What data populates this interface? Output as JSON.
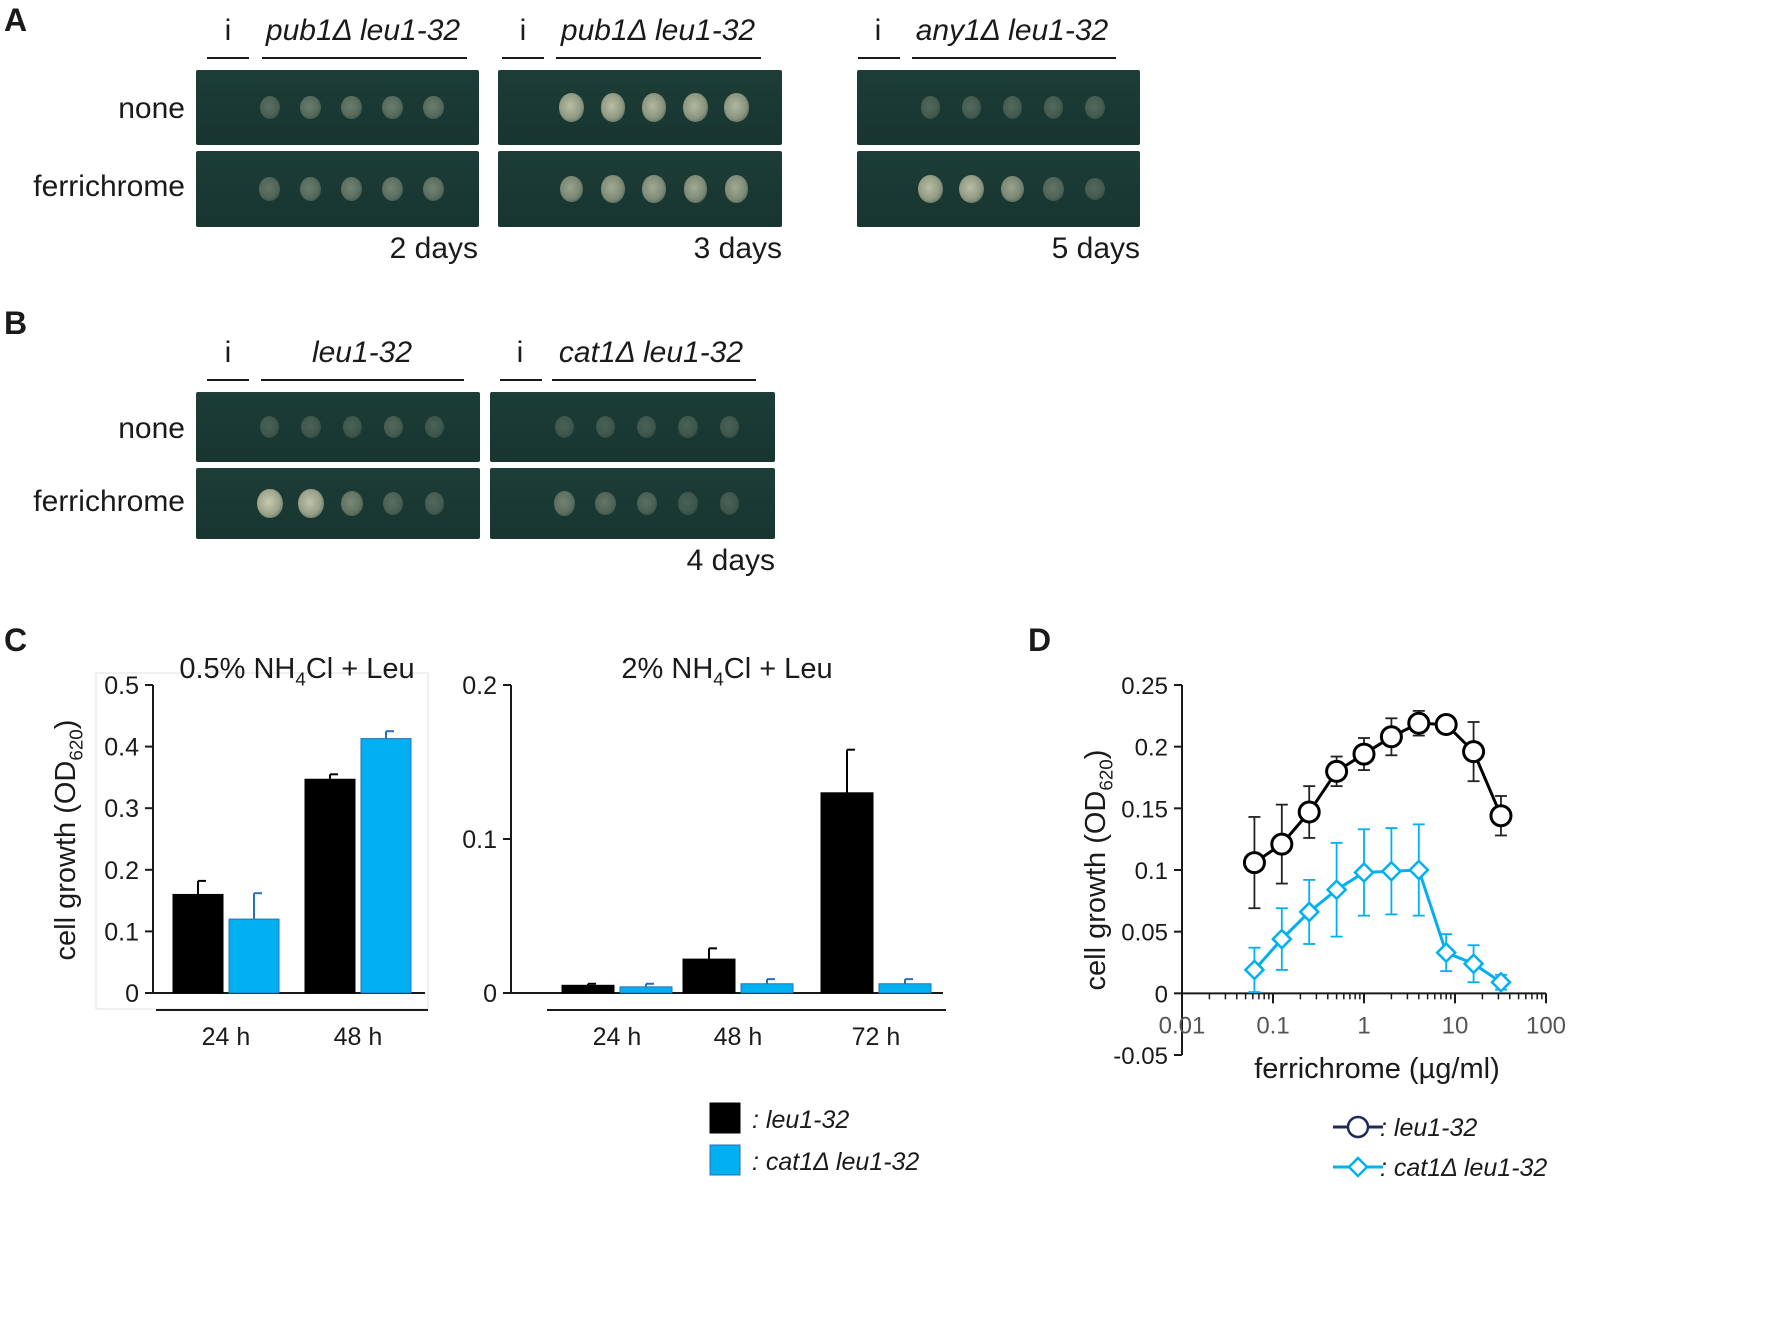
{
  "panels": {
    "A": {
      "letter": "A",
      "row_labels": [
        "none",
        "ferrichrome"
      ],
      "groups": [
        {
          "i_label": "i",
          "strain": "pub1Δ leu1-32",
          "days": "2 days",
          "none_spots": [
            0.25,
            0.35,
            0.35,
            0.35,
            0.35
          ],
          "ferri_spots": [
            0.3,
            0.35,
            0.4,
            0.4,
            0.4
          ]
        },
        {
          "i_label": "i",
          "strain": "pub1Δ leu1-32",
          "days": "3 days",
          "none_spots": [
            0.85,
            0.85,
            0.8,
            0.8,
            0.8
          ],
          "ferri_spots": [
            0.65,
            0.7,
            0.7,
            0.7,
            0.7
          ]
        },
        {
          "i_label": "i",
          "strain": "any1Δ leu1-32",
          "days": "5 days",
          "none_spots": [
            0.2,
            0.2,
            0.2,
            0.2,
            0.2
          ],
          "ferri_spots": [
            0.85,
            0.85,
            0.65,
            0.3,
            0.2
          ]
        }
      ]
    },
    "B": {
      "letter": "B",
      "row_labels": [
        "none",
        "ferrichrome"
      ],
      "groups": [
        {
          "i_label": "i",
          "strain": "leu1-32",
          "none_spots": [
            0.15,
            0.15,
            0.15,
            0.2,
            0.15
          ],
          "ferri_spots": [
            0.95,
            0.9,
            0.45,
            0.25,
            0.2
          ]
        },
        {
          "i_label": "i",
          "strain": "cat1Δ leu1-32",
          "none_spots": [
            0.15,
            0.15,
            0.15,
            0.15,
            0.15
          ],
          "ferri_spots": [
            0.4,
            0.3,
            0.25,
            0.15,
            0.15
          ]
        }
      ],
      "days": "4 days"
    },
    "C": {
      "letter": "C"
    },
    "D": {
      "letter": "D"
    }
  },
  "chart_data": [
    {
      "id": "C-left",
      "type": "bar",
      "title": "0.5% NH4Cl + Leu",
      "title_parts": {
        "pre": "0.5% NH",
        "sub": "4",
        "post": "Cl + Leu"
      },
      "ylabel": "cell growth (OD620)",
      "ylabel_parts": {
        "pre": "cell growth (OD",
        "sub": "620",
        "post": ")"
      },
      "ylim": [
        0,
        0.5
      ],
      "yticks": [
        0,
        0.1,
        0.2,
        0.3,
        0.4,
        0.5
      ],
      "ytick_labels": [
        "0",
        "0.1",
        "0.2",
        "0.3",
        "0.4",
        "0.5"
      ],
      "categories": [
        "24 h",
        "48 h"
      ],
      "series": [
        {
          "name": "leu1-32",
          "color": "#000000",
          "values": [
            0.16,
            0.347
          ],
          "errors": [
            0.022,
            0.008
          ]
        },
        {
          "name": "cat1Δ leu1-32",
          "color": "#00b0f0",
          "values": [
            0.12,
            0.413
          ],
          "errors": [
            0.042,
            0.012
          ]
        }
      ]
    },
    {
      "id": "C-right",
      "type": "bar",
      "title": "2% NH4Cl + Leu",
      "title_parts": {
        "pre": "2% NH",
        "sub": "4",
        "post": "Cl + Leu"
      },
      "ylim": [
        0,
        0.2
      ],
      "yticks": [
        0,
        0.1,
        0.2
      ],
      "ytick_labels": [
        "0",
        "0.1",
        "0.2"
      ],
      "categories": [
        "24 h",
        "48 h",
        "72 h"
      ],
      "series": [
        {
          "name": "leu1-32",
          "color": "#000000",
          "values": [
            0.005,
            0.022,
            0.13
          ],
          "errors": [
            0.001,
            0.007,
            0.028
          ]
        },
        {
          "name": "cat1Δ leu1-32",
          "color": "#00b0f0",
          "values": [
            0.004,
            0.006,
            0.006
          ],
          "errors": [
            0.002,
            0.003,
            0.003
          ]
        }
      ]
    },
    {
      "id": "D",
      "type": "line",
      "xscale": "log",
      "xlabel": "ferrichrome (µg/ml)",
      "ylabel": "cell growth (OD620)",
      "ylabel_parts": {
        "pre": "cell growth (OD",
        "sub": "620",
        "post": ")"
      },
      "xlim": [
        0.01,
        100
      ],
      "xticks": [
        0.01,
        0.1,
        1,
        10,
        100
      ],
      "xtick_labels": [
        "0.01",
        "0.1",
        "1",
        "10",
        "100"
      ],
      "ylim": [
        -0.05,
        0.25
      ],
      "yticks": [
        -0.05,
        0,
        0.05,
        0.1,
        0.15,
        0.2,
        0.25
      ],
      "ytick_labels": [
        "-0.05",
        "0",
        "0.05",
        "0.1",
        "0.15",
        "0.2",
        "0.25"
      ],
      "series": [
        {
          "name": "leu1-32",
          "color": "#000000",
          "legend_color": "#1f2a5a",
          "marker": "circle",
          "x": [
            0.0625,
            0.125,
            0.25,
            0.5,
            1,
            2,
            4,
            8,
            16,
            32
          ],
          "y": [
            0.106,
            0.121,
            0.147,
            0.18,
            0.194,
            0.208,
            0.219,
            0.218,
            0.196,
            0.144
          ],
          "errors": [
            0.037,
            0.032,
            0.021,
            0.012,
            0.013,
            0.015,
            0.01,
            0.004,
            0.024,
            0.016
          ]
        },
        {
          "name": "cat1Δ leu1-32",
          "color": "#00b0f0",
          "legend_color": "#00b0f0",
          "marker": "diamond",
          "x": [
            0.0625,
            0.125,
            0.25,
            0.5,
            1,
            2,
            4,
            8,
            16,
            32
          ],
          "y": [
            0.019,
            0.044,
            0.066,
            0.084,
            0.098,
            0.099,
            0.1,
            0.033,
            0.024,
            0.009
          ],
          "errors": [
            0.018,
            0.025,
            0.026,
            0.038,
            0.035,
            0.035,
            0.037,
            0.015,
            0.015,
            0.006
          ]
        }
      ]
    }
  ],
  "legend_C": [
    {
      "label": ": leu1-32",
      "color": "#000000"
    },
    {
      "label": ": cat1Δ leu1-32",
      "color": "#00b0f0"
    }
  ],
  "legend_D": [
    {
      "label": ": leu1-32"
    },
    {
      "label": ": cat1Δ leu1-32"
    }
  ]
}
